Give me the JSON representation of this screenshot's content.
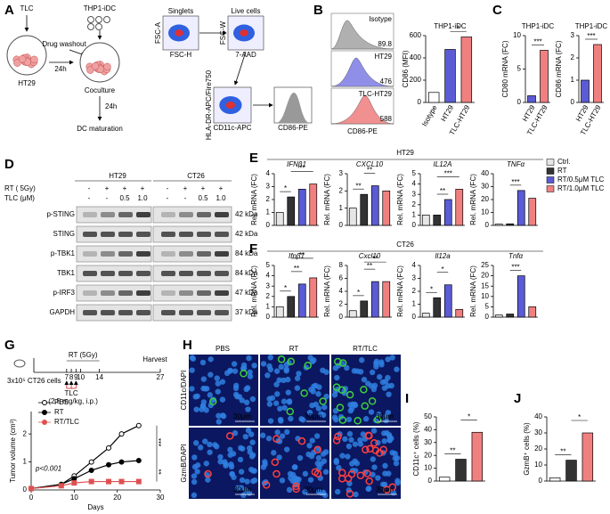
{
  "panel_labels": [
    "A",
    "B",
    "C",
    "D",
    "E",
    "F",
    "G",
    "H",
    "I",
    "J"
  ],
  "schematic_a": {
    "tlc": "TLC",
    "ht29": "HT29",
    "thp1": "THP1-iDC",
    "washout": "Drug washout",
    "t1": "24h",
    "coculture": "Coculture",
    "t2": "24h",
    "maturation": "DC maturation",
    "gates": [
      {
        "title": "Singlets",
        "x": "FSC-H",
        "y": "FSC-A"
      },
      {
        "title": "Live cells",
        "x": "7-AAD",
        "y": "FSC-W"
      },
      {
        "x": "CD11c-APC",
        "y": "HLA-DR-APC/Fire750"
      },
      {
        "x": "CD86-PE"
      }
    ]
  },
  "histograms_b": {
    "xlabel": "CD86-PE",
    "items": [
      {
        "name": "Isotype",
        "mfi": 89.8,
        "color": "#b0b0b0"
      },
      {
        "name": "HT29",
        "mfi": 476,
        "color": "#8f8fe8"
      },
      {
        "name": "TLC-HT29",
        "mfi": 588,
        "color": "#f09090"
      }
    ]
  },
  "blot_d": {
    "rt": "RT ( 5Gy)",
    "tlc": "TLC (μM)",
    "cell_lines": [
      "HT29",
      "CT26"
    ],
    "rt_signs": [
      "-",
      "+",
      "+",
      "+",
      "-",
      "+",
      "+",
      "+"
    ],
    "tlc_doses": [
      "-",
      "-",
      "0.5",
      "1.0",
      "-",
      "-",
      "0.5",
      "1.0"
    ],
    "rows": [
      {
        "name": "p-STING",
        "kda": "42 kDa"
      },
      {
        "name": "STING",
        "kda": "42 kDa"
      },
      {
        "name": "p-TBK1",
        "kda": "84 kDa"
      },
      {
        "name": "TBK1",
        "kda": "84 kDa"
      },
      {
        "name": "p-IRF3",
        "kda": "47 kDa"
      },
      {
        "name": "GAPDH",
        "kda": "37 kDa"
      }
    ]
  },
  "groups_ef": [
    "HT29",
    "CT26"
  ],
  "legend_ef": [
    {
      "name": "Ctrl.",
      "color": "#e6e6e6"
    },
    {
      "name": "RT",
      "color": "#333333"
    },
    {
      "name": "RT/0.5μM TLC",
      "color": "#5b5bd6"
    },
    {
      "name": "RT/1.0μM TLC",
      "color": "#f08080"
    }
  ],
  "schematic_g": {
    "rt": "RT (5Gy)",
    "harvest": "Harvest",
    "cells": "3x10⁵ CT26 cells",
    "tlc": "TLC",
    "dose": "(2.5 mg/kg, i.p.)",
    "days": [
      7,
      8,
      9,
      10,
      14,
      27
    ]
  },
  "images_h": {
    "columns": [
      "PBS",
      "RT",
      "RT/TLC"
    ],
    "rows": [
      {
        "name": "CD11c/DAPI",
        "color": "#3cd03c"
      },
      {
        "name": "GzmB/DAPI",
        "color": "#ff4040"
      }
    ],
    "scale": "30μm"
  },
  "chart_data": [
    {
      "type": "bar",
      "title": "THP1-iDC",
      "ylabel": "CD86 (MFI)",
      "categories": [
        "Isotype",
        "HT29",
        "TLC-HT29"
      ],
      "values": [
        89.8,
        476,
        588
      ],
      "colors": [
        "#ffffff",
        "#5b5bd6",
        "#f08080"
      ],
      "ylim": [
        0,
        600
      ],
      "yticks": [
        0,
        200,
        400,
        600
      ],
      "stars": [
        "*"
      ]
    },
    {
      "type": "bar",
      "title": "THP1-iDC",
      "ylabel": "CD80 mRNA (FC)",
      "categories": [
        "HT29",
        "TLC-HT29"
      ],
      "values": [
        1,
        7.8
      ],
      "colors": [
        "#5b5bd6",
        "#f08080"
      ],
      "ylim": [
        0,
        10
      ],
      "yticks": [
        0,
        5,
        10
      ],
      "stars": [
        "***"
      ]
    },
    {
      "type": "bar",
      "title": "THP1-iDC",
      "ylabel": "CD86 mRNA (FC)",
      "categories": [
        "HT29",
        "TLC-HT29"
      ],
      "values": [
        1,
        2.6
      ],
      "colors": [
        "#5b5bd6",
        "#f08080"
      ],
      "ylim": [
        0,
        3
      ],
      "yticks": [
        0,
        1,
        2,
        3
      ],
      "stars": [
        "***"
      ]
    },
    {
      "type": "bar",
      "title": "IFNβ1",
      "ylabel": "Rel. mRNA (FC)",
      "values": [
        1,
        2.2,
        2.8,
        3.2
      ],
      "ylim": [
        0,
        4
      ],
      "yticks": [
        0,
        1,
        2,
        3,
        4
      ],
      "stars": [
        "*",
        "**"
      ]
    },
    {
      "type": "bar",
      "title": "CXCL10",
      "ylabel": "Rel. mRNA (FC)",
      "values": [
        1,
        1.8,
        2.3,
        2.0
      ],
      "ylim": [
        0,
        3
      ],
      "yticks": [
        0,
        1,
        2,
        3
      ],
      "stars": [
        "**",
        "**"
      ]
    },
    {
      "type": "bar",
      "title": "IL12A",
      "ylabel": "Rel. mRNA (FC)",
      "values": [
        1,
        1,
        2.5,
        3.5
      ],
      "ylim": [
        0,
        5
      ],
      "yticks": [
        0,
        1,
        2,
        3,
        4,
        5
      ],
      "stars": [
        "**",
        "***"
      ]
    },
    {
      "type": "bar",
      "title": "TNFα",
      "ylabel": "Rel. mRNA (FC)",
      "values": [
        1,
        1.2,
        27,
        21
      ],
      "ylim": [
        0,
        40
      ],
      "yticks": [
        0,
        10,
        20,
        30,
        40
      ],
      "stars": [
        "***"
      ]
    },
    {
      "type": "bar",
      "title": "Ifnβ1",
      "ylabel": "Rel. mRNA (FC)",
      "values": [
        1,
        2,
        3.2,
        3.8
      ],
      "ylim": [
        0,
        5
      ],
      "yticks": [
        0,
        1,
        2,
        3,
        4,
        5
      ],
      "stars": [
        "*",
        "**",
        "**"
      ]
    },
    {
      "type": "bar",
      "title": "Cxcl10",
      "ylabel": "Rel. mRNA (FC)",
      "values": [
        1,
        2.5,
        5.5,
        5.5
      ],
      "ylim": [
        0,
        8
      ],
      "yticks": [
        0,
        2,
        4,
        6,
        8
      ],
      "stars": [
        "*",
        "**",
        "**"
      ]
    },
    {
      "type": "bar",
      "title": "Il12a",
      "ylabel": "Rel. mRNA (FC)",
      "values": [
        0.3,
        1.5,
        2.5,
        0.6
      ],
      "ylim": [
        0,
        4
      ],
      "yticks": [
        0,
        1,
        2,
        3,
        4
      ],
      "stars": [
        "*",
        "*"
      ]
    },
    {
      "type": "bar",
      "title": "Tnfα",
      "ylabel": "Rel. mRNA (FC)",
      "values": [
        1,
        1.5,
        20,
        5
      ],
      "ylim": [
        0,
        25
      ],
      "yticks": [
        0,
        5,
        10,
        15,
        20,
        25
      ],
      "stars": [
        "***"
      ]
    },
    {
      "type": "bar",
      "ylabel": "CD11c⁺ cells (%)",
      "values": [
        3,
        17,
        38
      ],
      "colors": [
        "#ffffff",
        "#333333",
        "#f08080"
      ],
      "ylim": [
        0,
        50
      ],
      "yticks": [
        0,
        10,
        20,
        30,
        40,
        50
      ],
      "stars": [
        "**",
        "*"
      ]
    },
    {
      "type": "bar",
      "ylabel": "GzmB⁺ cells (%)",
      "values": [
        2,
        13,
        30
      ],
      "colors": [
        "#ffffff",
        "#333333",
        "#f08080"
      ],
      "ylim": [
        0,
        40
      ],
      "yticks": [
        0,
        10,
        20,
        30,
        40
      ],
      "stars": [
        "**",
        "*"
      ]
    },
    {
      "type": "line",
      "xlabel": "Days",
      "ylabel": "Tumor volume (cm³)",
      "x": [
        0,
        7,
        10,
        14,
        18,
        21,
        25
      ],
      "series": [
        {
          "name": "PBS",
          "color": "#ffffff",
          "values": [
            0.05,
            0.2,
            0.5,
            1.0,
            1.5,
            2.0,
            2.3
          ]
        },
        {
          "name": "RT",
          "color": "#000000",
          "values": [
            0.05,
            0.2,
            0.4,
            0.7,
            0.9,
            1.0,
            1.05
          ]
        },
        {
          "name": "RT/TLC",
          "color": "#e05050",
          "values": [
            0.05,
            0.15,
            0.25,
            0.3,
            0.3,
            0.3,
            0.3
          ]
        }
      ],
      "xlim": [
        0,
        30
      ],
      "xticks": [
        0,
        10,
        20,
        30
      ],
      "ylim": [
        0,
        2.8
      ],
      "yticks": [
        0,
        1,
        2
      ],
      "annotation": "p<0.001",
      "stars": [
        "***",
        "**"
      ]
    }
  ]
}
